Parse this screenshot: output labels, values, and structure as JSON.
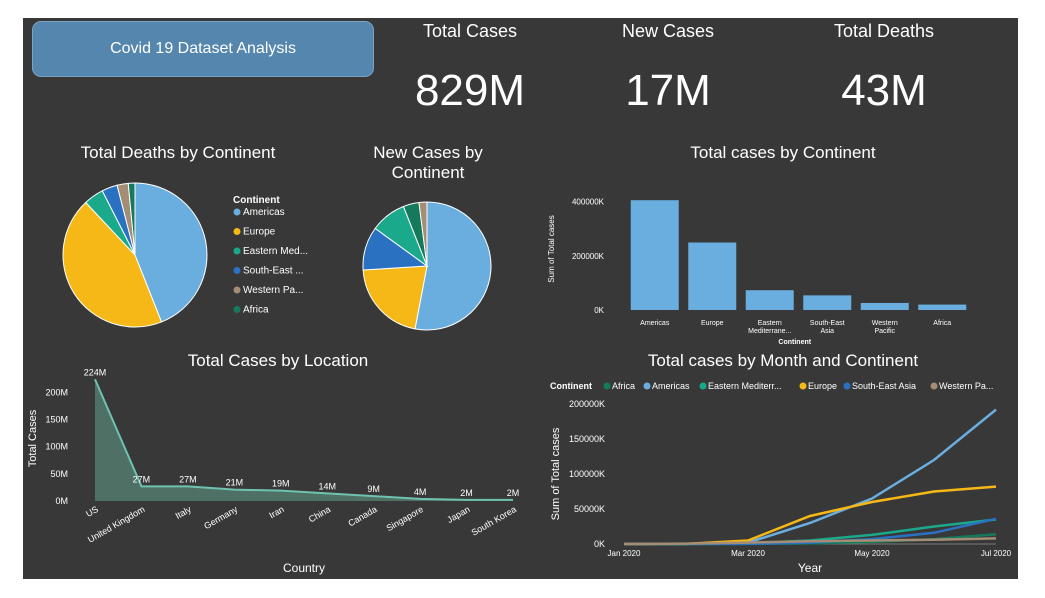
{
  "header": {
    "title": "Covid 19 Dataset Analysis"
  },
  "kpis": [
    {
      "label": "Total Cases",
      "value": "829M"
    },
    {
      "label": "New Cases",
      "value": "17M"
    },
    {
      "label": "Total Deaths",
      "value": "43M"
    }
  ],
  "colors": {
    "Americas": "#6aaee0",
    "Europe": "#f5b816",
    "Eastern Med": "#1aa98a",
    "South-East Asia": "#2a72c1",
    "Western Pacific": "#a48d74",
    "Africa": "#157a5c",
    "location_area": "#4e7065",
    "location_line": "#6fc2b0"
  },
  "legend_continent": {
    "title": "Continent",
    "items": [
      "Americas",
      "Europe",
      "Eastern Med...",
      "South-East ...",
      "Western Pa...",
      "Africa"
    ]
  },
  "chart_data": [
    {
      "type": "pie",
      "title": "Total Deaths by Continent",
      "legend_title": "Continent",
      "labels": [
        "Americas",
        "Europe",
        "Eastern Med",
        "South-East Asia",
        "Western Pacific",
        "Africa"
      ],
      "values": [
        44,
        44,
        4.5,
        3.5,
        2.5,
        1.5
      ]
    },
    {
      "type": "pie",
      "title": "New Cases by Continent",
      "labels": [
        "Americas",
        "Europe",
        "South-East Asia",
        "Eastern Med",
        "Africa",
        "Western Pacific"
      ],
      "values": [
        53,
        21,
        11,
        9,
        4,
        2
      ]
    },
    {
      "type": "bar",
      "title": "Total cases by Continent",
      "xlabel": "Continent",
      "ylabel": "Sum of Total cases",
      "categories": [
        "Americas",
        "Europe",
        "Eastern Mediterrane...",
        "South-East Asia",
        "Western Pacific",
        "Africa"
      ],
      "values": [
        405000,
        249000,
        73000,
        54000,
        26000,
        20000
      ],
      "ylim": [
        0,
        450000
      ],
      "yticks": [
        "0K",
        "200000K",
        "400000K"
      ],
      "ytick_values": [
        0,
        200000,
        400000
      ]
    },
    {
      "type": "area",
      "title": "Total Cases by Location",
      "xlabel": "Country",
      "ylabel": "Total Cases",
      "categories": [
        "US",
        "United Kingdom",
        "Italy",
        "Germany",
        "Iran",
        "China",
        "Canada",
        "Singapore",
        "Japan",
        "South Korea"
      ],
      "values": [
        224,
        27,
        27,
        21,
        19,
        14,
        9,
        4,
        2,
        2
      ],
      "data_labels": [
        "224M",
        "27M",
        "27M",
        "21M",
        "19M",
        "14M",
        "9M",
        "4M",
        "2M",
        "2M"
      ],
      "yticks": [
        "0M",
        "50M",
        "100M",
        "150M",
        "200M"
      ],
      "ytick_values": [
        0,
        50,
        100,
        150,
        200
      ],
      "ylim": [
        0,
        230
      ]
    },
    {
      "type": "line",
      "title": "Total cases by Month and Continent",
      "xlabel": "Year",
      "ylabel": "Sum of Total cases",
      "legend_title": "Continent",
      "legend_items": [
        "Africa",
        "Americas",
        "Eastern Mediterr...",
        "Europe",
        "South-East Asia",
        "Western Pa..."
      ],
      "x": [
        "Jan 2020",
        "Feb 2020",
        "Mar 2020",
        "Apr 2020",
        "May 2020",
        "Jun 2020",
        "Jul 2020"
      ],
      "xticks": [
        "Jan 2020",
        "Mar 2020",
        "May 2020",
        "Jul 2020"
      ],
      "yticks": [
        "0K",
        "50000K",
        "100000K",
        "150000K",
        "200000K"
      ],
      "ytick_values": [
        0,
        50000,
        100000,
        150000,
        200000
      ],
      "ylim": [
        0,
        200000
      ],
      "series": [
        {
          "name": "Africa",
          "values": [
            0,
            0,
            200,
            900,
            3000,
            7000,
            14000
          ]
        },
        {
          "name": "Americas",
          "values": [
            0,
            100,
            2000,
            30000,
            65000,
            120000,
            192000
          ]
        },
        {
          "name": "Eastern Mediterranean",
          "values": [
            0,
            0,
            1000,
            5000,
            13000,
            25000,
            35000
          ]
        },
        {
          "name": "Europe",
          "values": [
            0,
            200,
            5000,
            40000,
            60000,
            75000,
            82000
          ]
        },
        {
          "name": "South-East Asia",
          "values": [
            0,
            0,
            100,
            2000,
            7000,
            16000,
            36000
          ]
        },
        {
          "name": "Western Pacific",
          "values": [
            0,
            500,
            2000,
            4000,
            5000,
            6000,
            8000
          ]
        }
      ]
    }
  ]
}
